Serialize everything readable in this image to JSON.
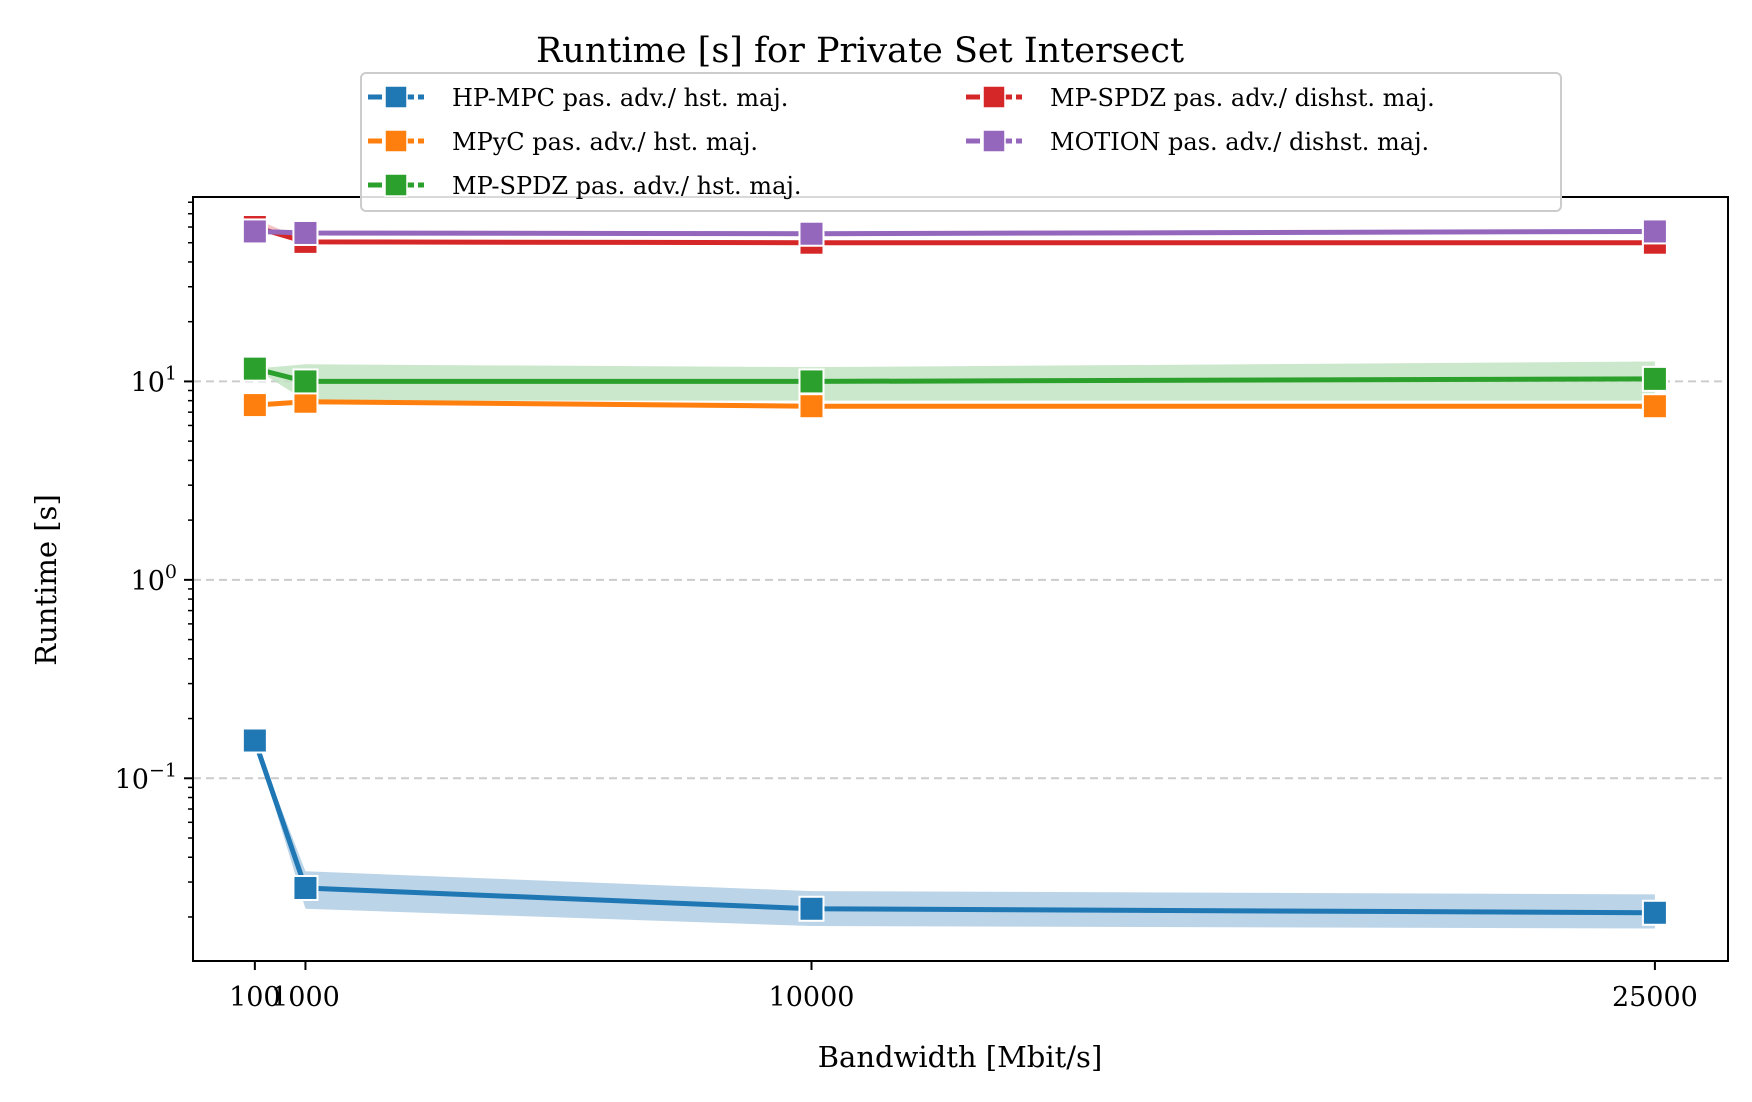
{
  "chart_data": {
    "type": "line",
    "title": "Runtime [s] for Private Set Intersect",
    "xlabel": "Bandwidth [Mbit/s]",
    "ylabel": "Runtime [s]",
    "yscale": "log",
    "ylim": [
      0.012,
      85
    ],
    "grid": "y-major dashed",
    "legend_position": "top-center",
    "x": [
      100,
      1000,
      10000,
      25000
    ],
    "x_tick_labels": [
      "100",
      "1000",
      "10000",
      "25000"
    ],
    "y_ticks": [
      {
        "value": 0.1,
        "base": "10",
        "exp": "−1"
      },
      {
        "value": 1,
        "base": "10",
        "exp": "0"
      },
      {
        "value": 10,
        "base": "10",
        "exp": "1"
      }
    ],
    "series": [
      {
        "name": "HP-MPC pas. adv./ hst. maj.",
        "color": "#1f77b4",
        "band_color": "#aac9e2",
        "values": [
          0.155,
          0.028,
          0.022,
          0.021
        ],
        "band_low": [
          0.155,
          0.022,
          0.018,
          0.0175
        ],
        "band_high": [
          0.155,
          0.034,
          0.027,
          0.026
        ]
      },
      {
        "name": "MPyC pas. adv./ hst. maj.",
        "color": "#ff7f0e",
        "band_color": "#ffd0a8",
        "values": [
          7.6,
          7.9,
          7.5,
          7.5
        ],
        "band_low": [
          7.6,
          7.7,
          7.3,
          7.3
        ],
        "band_high": [
          7.6,
          8.1,
          7.7,
          7.7
        ]
      },
      {
        "name": "MP-SPDZ pas. adv./ hst. maj.",
        "color": "#2ca02c",
        "band_color": "#bfe2bf",
        "values": [
          11.6,
          10.0,
          10.0,
          10.3
        ],
        "band_low": [
          11.6,
          8.0,
          8.0,
          8.0
        ],
        "band_high": [
          11.6,
          12.2,
          11.8,
          12.6
        ]
      },
      {
        "name": "MP-SPDZ pas. adv./ dishst. maj.",
        "color": "#d62728",
        "band_color": "#f3b4b4",
        "values": [
          60.0,
          50.5,
          50.0,
          50.0
        ],
        "band_low": [
          60.0,
          49.5,
          49.0,
          49.0
        ],
        "band_high": [
          66.0,
          51.5,
          51.0,
          51.0
        ]
      },
      {
        "name": "MOTION pas. adv./ dishst. maj.",
        "color": "#9467bd",
        "band_color": "#d8c5ea",
        "values": [
          57.0,
          56.0,
          55.5,
          57.0
        ],
        "band_low": [
          56.0,
          55.0,
          54.5,
          56.0
        ],
        "band_high": [
          58.5,
          57.5,
          57.0,
          58.5
        ]
      }
    ]
  }
}
